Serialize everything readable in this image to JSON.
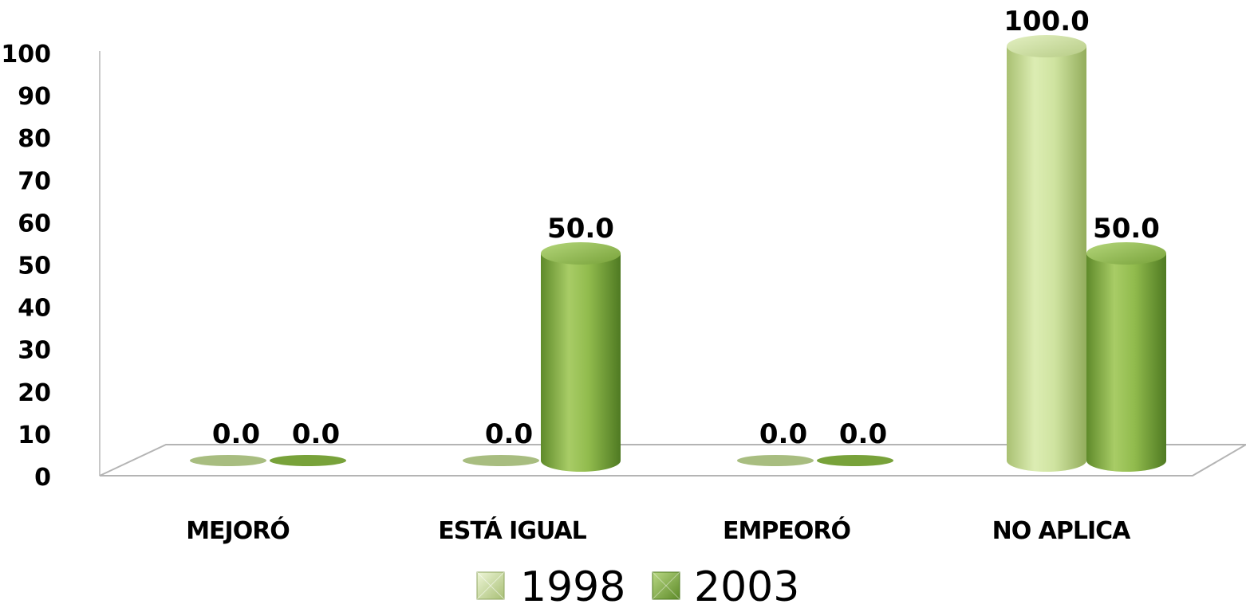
{
  "chart_data": {
    "type": "bar",
    "title": "",
    "xlabel": "",
    "ylabel": "",
    "ylim": [
      0,
      100
    ],
    "yticks": [
      0,
      10,
      20,
      30,
      40,
      50,
      60,
      70,
      80,
      90,
      100
    ],
    "categories": [
      "MEJORÓ",
      "ESTÁ IGUAL",
      "EMPEORÓ",
      "NO APLICA"
    ],
    "series": [
      {
        "name": "1998",
        "values": [
          0.0,
          0.0,
          0.0,
          100.0
        ],
        "labels": [
          "0.0",
          "0.0",
          "0.0",
          "100.0"
        ],
        "color": "#c8dc9a"
      },
      {
        "name": "2003",
        "values": [
          0.0,
          50.0,
          0.0,
          50.0
        ],
        "labels": [
          "0.0",
          "50.0",
          "0.0",
          "50.0"
        ],
        "color": "#8cb548"
      }
    ],
    "style": "3d-cylinder",
    "grid": false,
    "legend": "bottom-center"
  }
}
